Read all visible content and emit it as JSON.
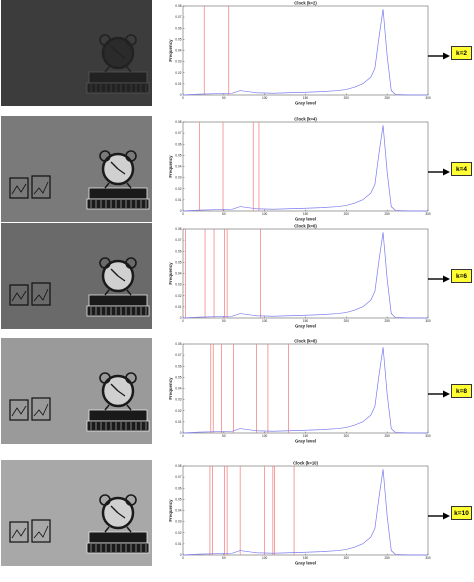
{
  "chart_data": [
    {
      "type": "line",
      "title": "Clock (k=2)",
      "xlabel": "Gray level",
      "ylabel": "Frequency",
      "xlim": [
        0,
        300
      ],
      "ylim": [
        0,
        0.08
      ],
      "xticks": [
        "0",
        "50",
        "100",
        "150",
        "200",
        "250",
        "300"
      ],
      "yticks": [
        "0",
        "0.01",
        "0.02",
        "0.03",
        "0.04",
        "0.05",
        "0.06",
        "0.07",
        "0.08"
      ],
      "thresholds": [
        26,
        56
      ],
      "tone": "#3c3c3c",
      "badge": "k=2",
      "series": [
        {
          "x": [
            0,
            20,
            40,
            60,
            70,
            90,
            110,
            130,
            150,
            170,
            190,
            200,
            210,
            220,
            230,
            235,
            240,
            245,
            250,
            255,
            260,
            270,
            280,
            300
          ],
          "values": [
            0,
            0.0008,
            0.0012,
            0.0015,
            0.004,
            0.002,
            0.0016,
            0.002,
            0.0025,
            0.003,
            0.004,
            0.005,
            0.007,
            0.01,
            0.016,
            0.024,
            0.052,
            0.077,
            0.035,
            0.004,
            0.0005,
            0.0002,
            0,
            0
          ]
        }
      ]
    },
    {
      "type": "line",
      "title": "Clock (k=4)",
      "xlabel": "Gray level",
      "ylabel": "Frequency",
      "xlim": [
        0,
        300
      ],
      "ylim": [
        0,
        0.08
      ],
      "xticks": [
        "0",
        "50",
        "100",
        "150",
        "200",
        "250",
        "300"
      ],
      "yticks": [
        "0",
        "0.01",
        "0.02",
        "0.03",
        "0.04",
        "0.05",
        "0.06",
        "0.07",
        "0.08"
      ],
      "thresholds": [
        20,
        49,
        86,
        93
      ],
      "tone": "#7a7a7a",
      "badge": "k=4",
      "series": [
        {
          "x": [
            0,
            20,
            40,
            60,
            70,
            90,
            110,
            130,
            150,
            170,
            190,
            200,
            210,
            220,
            230,
            235,
            240,
            245,
            250,
            255,
            260,
            270,
            280,
            300
          ],
          "values": [
            0,
            0.0008,
            0.0012,
            0.0015,
            0.004,
            0.002,
            0.0016,
            0.002,
            0.0025,
            0.003,
            0.004,
            0.005,
            0.007,
            0.01,
            0.016,
            0.024,
            0.052,
            0.077,
            0.035,
            0.004,
            0.0005,
            0.0002,
            0,
            0
          ]
        }
      ]
    },
    {
      "type": "line",
      "title": "Clock (k=6)",
      "xlabel": "Gray level",
      "ylabel": "Frequency",
      "xlim": [
        0,
        300
      ],
      "ylim": [
        0,
        0.08
      ],
      "xticks": [
        "0",
        "50",
        "100",
        "150",
        "200",
        "250",
        "300"
      ],
      "yticks": [
        "0",
        "0.01",
        "0.02",
        "0.03",
        "0.04",
        "0.05",
        "0.06",
        "0.07",
        "0.08"
      ],
      "thresholds": [
        3,
        27,
        38,
        51,
        54,
        95
      ],
      "tone": "#6a6a6a",
      "badge": "k=6",
      "series": [
        {
          "x": [
            0,
            20,
            40,
            60,
            70,
            90,
            110,
            130,
            150,
            170,
            190,
            200,
            210,
            220,
            230,
            235,
            240,
            245,
            250,
            255,
            260,
            270,
            280,
            300
          ],
          "values": [
            0,
            0.0008,
            0.0012,
            0.0015,
            0.004,
            0.002,
            0.0016,
            0.002,
            0.0025,
            0.003,
            0.004,
            0.005,
            0.007,
            0.01,
            0.016,
            0.024,
            0.052,
            0.077,
            0.035,
            0.004,
            0.0005,
            0.0002,
            0,
            0
          ]
        }
      ]
    },
    {
      "type": "line",
      "title": "Clock (k=8)",
      "xlabel": "Gray level",
      "ylabel": "Frequency",
      "xlim": [
        0,
        300
      ],
      "ylim": [
        0,
        0.08
      ],
      "xticks": [
        "0",
        "50",
        "100",
        "150",
        "200",
        "250",
        "300"
      ],
      "yticks": [
        "0",
        "0.01",
        "0.02",
        "0.03",
        "0.04",
        "0.05",
        "0.06",
        "0.07",
        "0.08"
      ],
      "thresholds": [
        34,
        37,
        47,
        62,
        90,
        104,
        129
      ],
      "tone": "#9a9a9a",
      "badge": "k=8",
      "series": [
        {
          "x": [
            0,
            20,
            40,
            60,
            70,
            90,
            110,
            130,
            150,
            170,
            190,
            200,
            210,
            220,
            230,
            235,
            240,
            245,
            250,
            255,
            260,
            270,
            280,
            300
          ],
          "values": [
            0,
            0.0008,
            0.0012,
            0.0015,
            0.004,
            0.002,
            0.0016,
            0.002,
            0.0025,
            0.003,
            0.004,
            0.005,
            0.007,
            0.01,
            0.016,
            0.024,
            0.052,
            0.077,
            0.035,
            0.004,
            0.0005,
            0.0002,
            0,
            0
          ]
        }
      ]
    },
    {
      "type": "line",
      "title": "Clock (k=10)",
      "xlabel": "Gray level",
      "ylabel": "Frequency",
      "xlim": [
        0,
        300
      ],
      "ylim": [
        0,
        0.08
      ],
      "xticks": [
        "0",
        "50",
        "100",
        "150",
        "200",
        "250",
        "300"
      ],
      "yticks": [
        "0",
        "0.01",
        "0.02",
        "0.03",
        "0.04",
        "0.05",
        "0.06",
        "0.07",
        "0.08"
      ],
      "thresholds": [
        33,
        36,
        51,
        54,
        70,
        100,
        110,
        112,
        136
      ],
      "tone": "#a8a8a8",
      "badge": "k=10",
      "series": [
        {
          "x": [
            0,
            20,
            40,
            60,
            70,
            90,
            110,
            130,
            150,
            170,
            190,
            200,
            210,
            220,
            230,
            235,
            240,
            245,
            250,
            255,
            260,
            270,
            280,
            300
          ],
          "values": [
            0,
            0.0008,
            0.0012,
            0.0015,
            0.004,
            0.002,
            0.0016,
            0.002,
            0.0025,
            0.003,
            0.004,
            0.005,
            0.007,
            0.01,
            0.016,
            0.024,
            0.052,
            0.077,
            0.035,
            0.004,
            0.0005,
            0.0002,
            0,
            0
          ]
        }
      ]
    }
  ],
  "colors": {
    "histogram": "#7b7bf0",
    "threshold": "#f07878",
    "badge_bg": "#ffff33"
  },
  "icons": {
    "arrow": "right-arrow-icon",
    "clock": "alarm-clock-image"
  }
}
